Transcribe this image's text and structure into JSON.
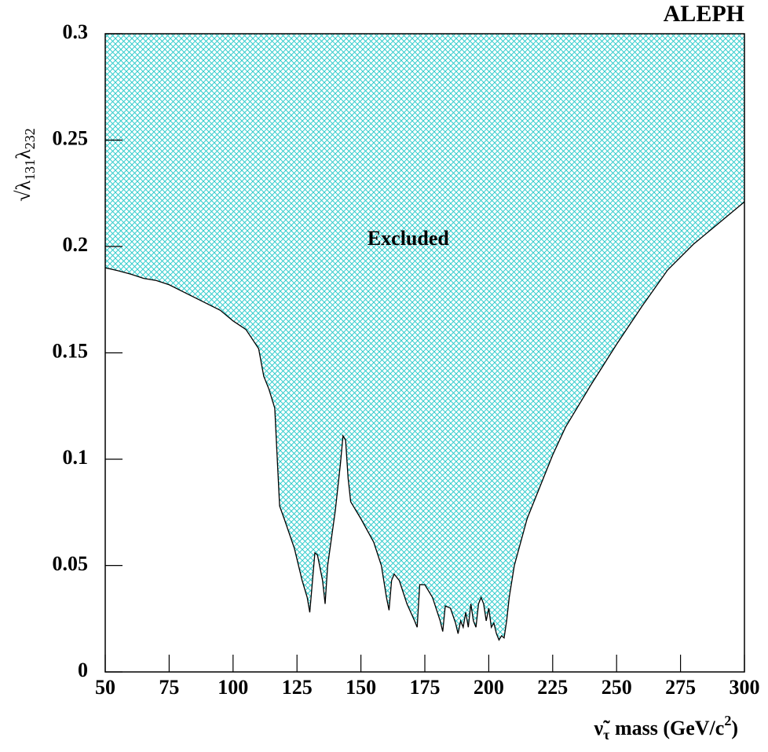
{
  "chart_data": {
    "type": "area",
    "title": "ALEPH",
    "xlabel": [
      "ν̃",
      "τ",
      " mass (GeV/c",
      "2",
      ")"
    ],
    "ylabel": [
      "√λ",
      "131",
      "λ",
      "232"
    ],
    "annotation": {
      "text": "Excluded",
      "x": 168.5,
      "y": 0.203
    },
    "fill_color": "#33cccc",
    "xlim": [
      50,
      300
    ],
    "ylim": [
      0,
      0.3
    ],
    "xticks": [
      50,
      75,
      100,
      125,
      150,
      175,
      200,
      225,
      250,
      275,
      300
    ],
    "yticks": [
      0,
      0.05,
      0.1,
      0.15,
      0.2,
      0.25,
      0.3
    ],
    "x": [
      50,
      55,
      60,
      65,
      70,
      75,
      80,
      85,
      90,
      95,
      100,
      105,
      110,
      112,
      114,
      116.3,
      118.2,
      120,
      124,
      127,
      129,
      130,
      132,
      133,
      135,
      136,
      137,
      140,
      142,
      143,
      144,
      145,
      146,
      150,
      155,
      158,
      160,
      161,
      162,
      163,
      165,
      168,
      171,
      172,
      173,
      175,
      178,
      181,
      182,
      183,
      185,
      187,
      188,
      189,
      190,
      191,
      192,
      193,
      194,
      195,
      196,
      197,
      198,
      199,
      200,
      201,
      202,
      203,
      204,
      205,
      206,
      207,
      208,
      210,
      215,
      220,
      225,
      230,
      240,
      250,
      260,
      270,
      280,
      290,
      300
    ],
    "values": [
      0.19,
      0.1886,
      0.187,
      0.185,
      0.184,
      0.182,
      0.179,
      0.176,
      0.173,
      0.17,
      0.165,
      0.161,
      0.152,
      0.139,
      0.133,
      0.124,
      0.078,
      0.072,
      0.058,
      0.043,
      0.035,
      0.028,
      0.056,
      0.055,
      0.043,
      0.032,
      0.05,
      0.076,
      0.098,
      0.111,
      0.109,
      0.091,
      0.08,
      0.072,
      0.061,
      0.05,
      0.035,
      0.029,
      0.043,
      0.046,
      0.043,
      0.032,
      0.024,
      0.021,
      0.041,
      0.041,
      0.035,
      0.024,
      0.019,
      0.031,
      0.03,
      0.023,
      0.018,
      0.024,
      0.021,
      0.028,
      0.021,
      0.032,
      0.024,
      0.021,
      0.032,
      0.035,
      0.032,
      0.024,
      0.03,
      0.021,
      0.023,
      0.018,
      0.015,
      0.017,
      0.016,
      0.024,
      0.035,
      0.05,
      0.072,
      0.087,
      0.102,
      0.115,
      0.135,
      0.154,
      0.172,
      0.189,
      0.201,
      0.211,
      0.221
    ]
  }
}
